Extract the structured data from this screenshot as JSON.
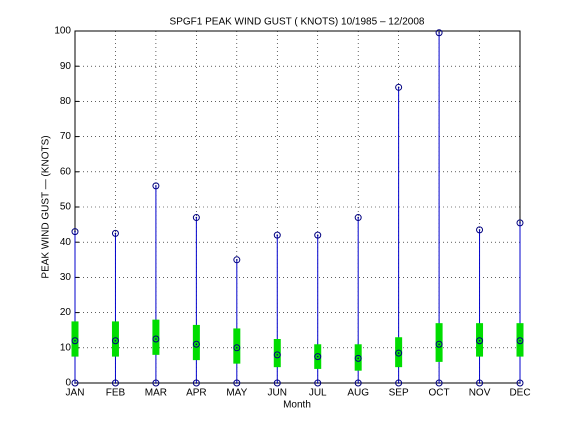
{
  "chart_data": {
    "type": "range",
    "title": "SPGF1  PEAK WIND GUST ( KNOTS) 10/1985 – 12/2008",
    "x_label": "Month",
    "y_label": "PEAK WIND GUST  —  (KNOTS)",
    "categories": [
      "JAN",
      "FEB",
      "MAR",
      "APR",
      "MAY",
      "JUN",
      "JUL",
      "AUG",
      "SEP",
      "OCT",
      "NOV",
      "DEC"
    ],
    "min": [
      0,
      0,
      0,
      0,
      0,
      0,
      0,
      0,
      0,
      0,
      0,
      0
    ],
    "max": [
      43,
      42.5,
      56,
      47,
      35,
      42,
      42,
      47,
      84,
      99.5,
      43.5,
      45.5
    ],
    "mean": [
      12,
      12,
      12.5,
      11,
      10,
      8,
      7.5,
      7,
      8.5,
      11,
      12,
      12
    ],
    "low": [
      7.5,
      7.5,
      8,
      6.5,
      5.5,
      4.5,
      4,
      3.5,
      4.5,
      6,
      7.5,
      7.5
    ],
    "high": [
      17.5,
      17.5,
      18,
      16.5,
      15.5,
      12.5,
      11,
      11,
      13,
      17,
      17,
      17
    ],
    "line_color": "#0000cc",
    "band_color": "#00dd00",
    "marker_color": "#000080",
    "ylim": [
      0,
      100
    ],
    "yticks": [
      0,
      10,
      20,
      30,
      40,
      50,
      60,
      70,
      80,
      90,
      100
    ],
    "grid": true
  }
}
